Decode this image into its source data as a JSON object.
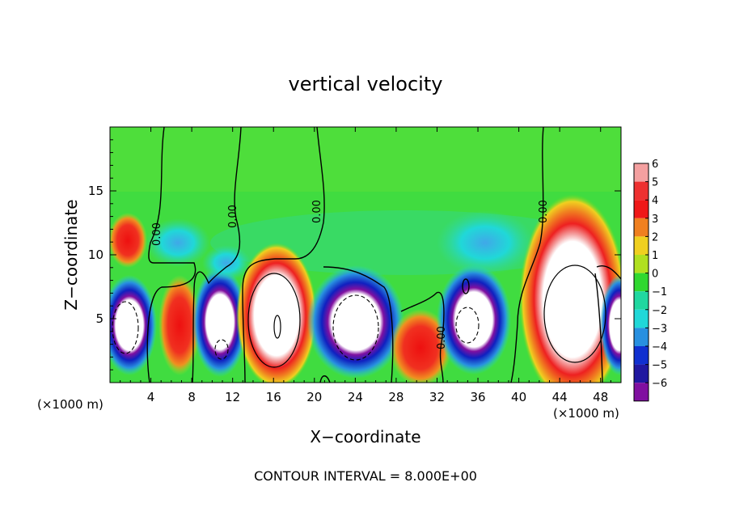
{
  "chart_data": {
    "type": "heatmap",
    "title": "vertical velocity",
    "xlabel": "X−coordinate",
    "ylabel": "Z−coordinate",
    "x_unit_label_left": "(×1000 m)",
    "x_unit_label_right": "(×1000 m)",
    "footer": "CONTOUR INTERVAL = 8.000E+00",
    "xlim": [
      0,
      50
    ],
    "ylim": [
      0,
      20
    ],
    "x_ticks": [
      4,
      8,
      12,
      16,
      20,
      24,
      28,
      32,
      36,
      40,
      44,
      48
    ],
    "x_tick_labels": [
      "4",
      "8",
      "12",
      "16",
      "20",
      "24",
      "28",
      "32",
      "36",
      "40",
      "44",
      "48"
    ],
    "y_ticks": [
      5,
      10,
      15
    ],
    "y_tick_labels": [
      "5",
      "10",
      "15"
    ],
    "contour_labels": [
      "0.00",
      "0.00",
      "0.00",
      "0.00",
      "0.00"
    ],
    "colorbar": {
      "levels": [
        6,
        5,
        4,
        3,
        2,
        1,
        0,
        -1,
        -2,
        -3,
        -4,
        -5,
        -6
      ],
      "labels": [
        "6",
        "5",
        "4",
        "3",
        "2",
        "1",
        "0",
        "−1",
        "−2",
        "−3",
        "−4",
        "−5",
        "−6"
      ],
      "colors": [
        "#f4a0a0",
        "#ee3030",
        "#f01818",
        "#f08020",
        "#f0d020",
        "#b0e020",
        "#30d830",
        "#20d8a0",
        "#20d8d8",
        "#2890e0",
        "#1030d0",
        "#2018a0",
        "#8010a0"
      ]
    },
    "cells": [
      {
        "x": 2,
        "z": 11,
        "v": 5
      },
      {
        "x": 1,
        "z": 5,
        "v": -6
      },
      {
        "x": 6,
        "z": 5,
        "v": 4
      },
      {
        "x": 10.5,
        "z": 4,
        "v": -6
      },
      {
        "x": 16.5,
        "z": 5,
        "v": 6
      },
      {
        "x": 24,
        "z": 5,
        "v": -6
      },
      {
        "x": 30,
        "z": 2.5,
        "v": 5
      },
      {
        "x": 35,
        "z": 4.5,
        "v": -6
      },
      {
        "x": 45,
        "z": 7,
        "v": 6
      },
      {
        "x": 49.5,
        "z": 5,
        "v": -5
      },
      {
        "x": 8.5,
        "z": 11,
        "v": -2
      },
      {
        "x": 36,
        "z": 11,
        "v": -2
      },
      {
        "x": 44,
        "z": 13,
        "v": 3
      }
    ]
  }
}
